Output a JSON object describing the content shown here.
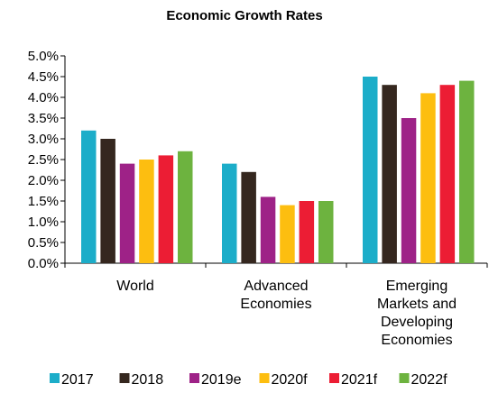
{
  "chart_data": {
    "type": "bar",
    "title": "Economic Growth Rates",
    "xlabel": "",
    "ylabel": "",
    "ylim": [
      0,
      0.05
    ],
    "yticks": [
      "0.0%",
      "0.5%",
      "1.0%",
      "1.5%",
      "2.0%",
      "2.5%",
      "3.0%",
      "3.5%",
      "4.0%",
      "4.5%",
      "5.0%"
    ],
    "categories": [
      [
        "World"
      ],
      [
        "Advanced",
        "Economies"
      ],
      [
        "Emerging",
        "Markets and",
        "Developing",
        "Economies"
      ]
    ],
    "series": [
      {
        "name": "2017",
        "color": "#1CADC9",
        "values": [
          0.032,
          0.024,
          0.045
        ]
      },
      {
        "name": "2018",
        "color": "#35271F",
        "values": [
          0.03,
          0.022,
          0.043
        ]
      },
      {
        "name": "2019e",
        "color": "#9E2287",
        "values": [
          0.024,
          0.016,
          0.035
        ]
      },
      {
        "name": "2020f",
        "color": "#FDBE10",
        "values": [
          0.025,
          0.014,
          0.041
        ]
      },
      {
        "name": "2021f",
        "color": "#EC1D34",
        "values": [
          0.026,
          0.015,
          0.043
        ]
      },
      {
        "name": "2022f",
        "color": "#6DB33F",
        "values": [
          0.027,
          0.015,
          0.044
        ]
      }
    ],
    "grid": false,
    "legend": "bottom"
  }
}
